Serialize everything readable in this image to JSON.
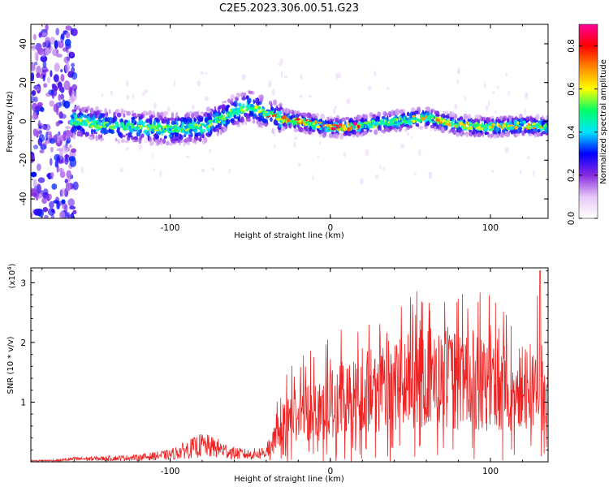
{
  "figure": {
    "title": "C2E5.2023.306.00.51.G23"
  },
  "chart_data": [
    {
      "type": "heatmap",
      "xlabel": "Height of straight line (km)",
      "ylabel": "Frequency (Hz)",
      "xlim": [
        -187,
        136
      ],
      "ylim": [
        -50,
        50
      ],
      "xticks": [
        -100,
        0,
        100
      ],
      "yticks": [
        -40,
        -20,
        0,
        20,
        40
      ],
      "grid": false,
      "colorbar": {
        "label": "Normalized spectral amplitude",
        "range": [
          0.0,
          0.9
        ],
        "ticks": [
          0.0,
          0.2,
          0.4,
          0.6,
          0.8
        ],
        "colors": [
          "#ffffff",
          "#e6c8f6",
          "#8a2be2",
          "#0000ff",
          "#00e5ff",
          "#00ff66",
          "#ffff00",
          "#ff8800",
          "#ff0000",
          "#ff0099"
        ]
      },
      "ridge": {
        "x": [
          -160,
          -140,
          -120,
          -100,
          -80,
          -60,
          -50,
          -40,
          -30,
          -20,
          0,
          10,
          20,
          40,
          60,
          80,
          100,
          120,
          136
        ],
        "y": [
          0,
          -2,
          -3,
          -4,
          -3,
          5,
          8,
          4,
          1,
          0,
          -3,
          -3,
          -2,
          0,
          2,
          -2,
          -3,
          -2,
          -3
        ]
      }
    },
    {
      "type": "line",
      "xlabel": "Height of straight line (km)",
      "ylabel": "SNR (10 * v/v)",
      "y_scale_label": "(x10",
      "y_scale_exponent": "4",
      "y_scale_close": ")",
      "xlim": [
        -187,
        136
      ],
      "ylim": [
        0,
        32500
      ],
      "xticks": [
        -100,
        0,
        100
      ],
      "yticks": [
        10000,
        20000,
        30000
      ],
      "ytick_labels": [
        "1",
        "2",
        "3"
      ],
      "grid": false,
      "series": [
        {
          "color": "#ee2222",
          "envelope": {
            "x": [
              -187,
              -170,
              -160,
              -140,
              -120,
              -100,
              -90,
              -80,
              -70,
              -60,
              -50,
              -40,
              -35,
              -30,
              -20,
              -10,
              0,
              20,
              40,
              60,
              80,
              100,
              120,
              130,
              136
            ],
            "y": [
              200,
              300,
              600,
              700,
              900,
              1500,
              2500,
              3500,
              2800,
              1800,
              1500,
              2000,
              4000,
              7000,
              9000,
              10000,
              10500,
              12500,
              14500,
              15500,
              15000,
              14000,
              13500,
              14000,
              13000
            ]
          },
          "peak": {
            "x": 131,
            "y": 32000
          }
        }
      ]
    }
  ]
}
